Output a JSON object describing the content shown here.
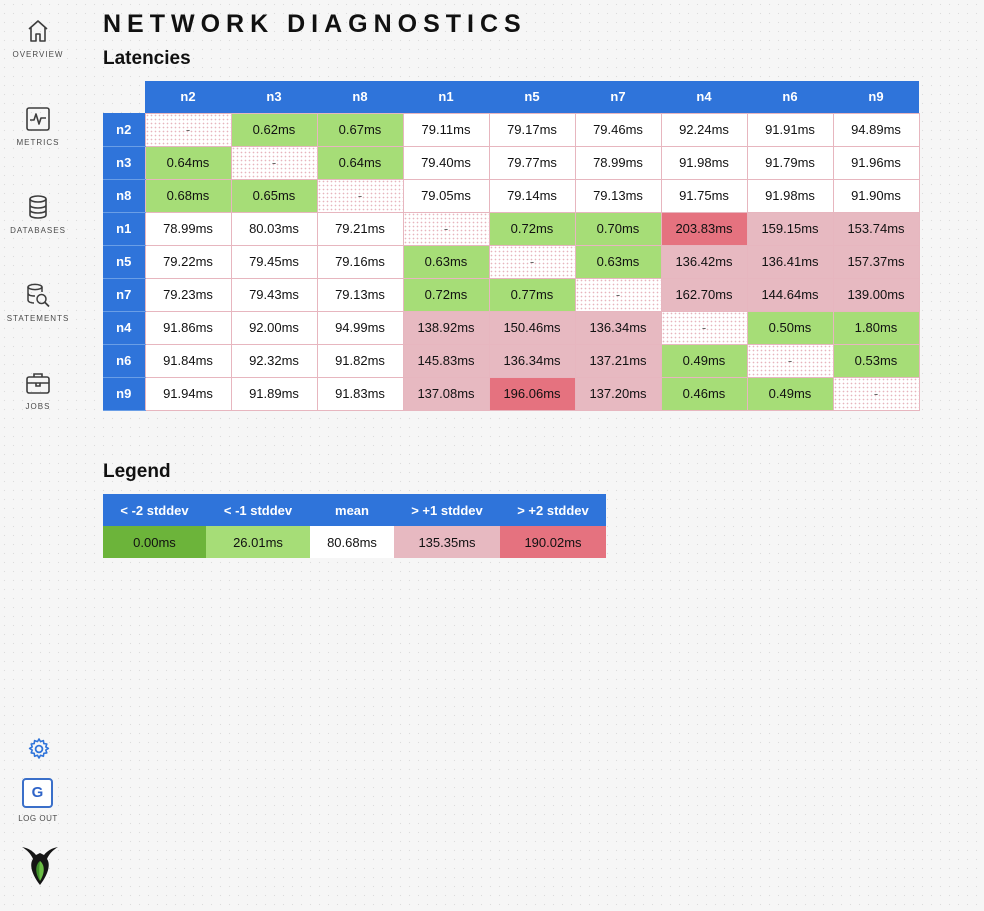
{
  "page": {
    "title": "NETWORK DIAGNOSTICS"
  },
  "sidebar": {
    "items": [
      {
        "label": "OVERVIEW",
        "icon": "home-icon"
      },
      {
        "label": "METRICS",
        "icon": "metrics-icon"
      },
      {
        "label": "DATABASES",
        "icon": "database-icon"
      },
      {
        "label": "STATEMENTS",
        "icon": "statements-icon"
      },
      {
        "label": "JOBS",
        "icon": "briefcase-icon"
      }
    ],
    "settings_icon": "gear-icon",
    "user_initial": "G",
    "logout_label": "LOG OUT",
    "logo_icon": "cockroach-logo-icon"
  },
  "latencies": {
    "heading": "Latencies",
    "columns": [
      "n2",
      "n3",
      "n8",
      "n1",
      "n5",
      "n7",
      "n4",
      "n6",
      "n9"
    ],
    "rows": [
      {
        "node": "n2",
        "cells": [
          {
            "v": "-",
            "c": "self"
          },
          {
            "v": "0.62ms",
            "c": "green"
          },
          {
            "v": "0.67ms",
            "c": "green"
          },
          {
            "v": "79.11ms",
            "c": "white"
          },
          {
            "v": "79.17ms",
            "c": "white"
          },
          {
            "v": "79.46ms",
            "c": "white"
          },
          {
            "v": "92.24ms",
            "c": "white"
          },
          {
            "v": "91.91ms",
            "c": "white"
          },
          {
            "v": "94.89ms",
            "c": "white"
          }
        ]
      },
      {
        "node": "n3",
        "cells": [
          {
            "v": "0.64ms",
            "c": "green"
          },
          {
            "v": "-",
            "c": "self"
          },
          {
            "v": "0.64ms",
            "c": "green"
          },
          {
            "v": "79.40ms",
            "c": "white"
          },
          {
            "v": "79.77ms",
            "c": "white"
          },
          {
            "v": "78.99ms",
            "c": "white"
          },
          {
            "v": "91.98ms",
            "c": "white"
          },
          {
            "v": "91.79ms",
            "c": "white"
          },
          {
            "v": "91.96ms",
            "c": "white"
          }
        ]
      },
      {
        "node": "n8",
        "cells": [
          {
            "v": "0.68ms",
            "c": "green"
          },
          {
            "v": "0.65ms",
            "c": "green"
          },
          {
            "v": "-",
            "c": "self"
          },
          {
            "v": "79.05ms",
            "c": "white"
          },
          {
            "v": "79.14ms",
            "c": "white"
          },
          {
            "v": "79.13ms",
            "c": "white"
          },
          {
            "v": "91.75ms",
            "c": "white"
          },
          {
            "v": "91.98ms",
            "c": "white"
          },
          {
            "v": "91.90ms",
            "c": "white"
          }
        ]
      },
      {
        "node": "n1",
        "cells": [
          {
            "v": "78.99ms",
            "c": "white"
          },
          {
            "v": "80.03ms",
            "c": "white"
          },
          {
            "v": "79.21ms",
            "c": "white"
          },
          {
            "v": "-",
            "c": "self"
          },
          {
            "v": "0.72ms",
            "c": "green"
          },
          {
            "v": "0.70ms",
            "c": "green"
          },
          {
            "v": "203.83ms",
            "c": "red"
          },
          {
            "v": "159.15ms",
            "c": "pink"
          },
          {
            "v": "153.74ms",
            "c": "pink"
          }
        ]
      },
      {
        "node": "n5",
        "cells": [
          {
            "v": "79.22ms",
            "c": "white"
          },
          {
            "v": "79.45ms",
            "c": "white"
          },
          {
            "v": "79.16ms",
            "c": "white"
          },
          {
            "v": "0.63ms",
            "c": "green"
          },
          {
            "v": "-",
            "c": "self"
          },
          {
            "v": "0.63ms",
            "c": "green"
          },
          {
            "v": "136.42ms",
            "c": "pink"
          },
          {
            "v": "136.41ms",
            "c": "pink"
          },
          {
            "v": "157.37ms",
            "c": "pink"
          }
        ]
      },
      {
        "node": "n7",
        "cells": [
          {
            "v": "79.23ms",
            "c": "white"
          },
          {
            "v": "79.43ms",
            "c": "white"
          },
          {
            "v": "79.13ms",
            "c": "white"
          },
          {
            "v": "0.72ms",
            "c": "green"
          },
          {
            "v": "0.77ms",
            "c": "green"
          },
          {
            "v": "-",
            "c": "self"
          },
          {
            "v": "162.70ms",
            "c": "pink"
          },
          {
            "v": "144.64ms",
            "c": "pink"
          },
          {
            "v": "139.00ms",
            "c": "pink"
          }
        ]
      },
      {
        "node": "n4",
        "cells": [
          {
            "v": "91.86ms",
            "c": "white"
          },
          {
            "v": "92.00ms",
            "c": "white"
          },
          {
            "v": "94.99ms",
            "c": "white"
          },
          {
            "v": "138.92ms",
            "c": "pink"
          },
          {
            "v": "150.46ms",
            "c": "pink"
          },
          {
            "v": "136.34ms",
            "c": "pink"
          },
          {
            "v": "-",
            "c": "self"
          },
          {
            "v": "0.50ms",
            "c": "green"
          },
          {
            "v": "1.80ms",
            "c": "green"
          }
        ]
      },
      {
        "node": "n6",
        "cells": [
          {
            "v": "91.84ms",
            "c": "white"
          },
          {
            "v": "92.32ms",
            "c": "white"
          },
          {
            "v": "91.82ms",
            "c": "white"
          },
          {
            "v": "145.83ms",
            "c": "pink"
          },
          {
            "v": "136.34ms",
            "c": "pink"
          },
          {
            "v": "137.21ms",
            "c": "pink"
          },
          {
            "v": "0.49ms",
            "c": "green"
          },
          {
            "v": "-",
            "c": "self"
          },
          {
            "v": "0.53ms",
            "c": "green"
          }
        ]
      },
      {
        "node": "n9",
        "cells": [
          {
            "v": "91.94ms",
            "c": "white"
          },
          {
            "v": "91.89ms",
            "c": "white"
          },
          {
            "v": "91.83ms",
            "c": "white"
          },
          {
            "v": "137.08ms",
            "c": "pink"
          },
          {
            "v": "196.06ms",
            "c": "red"
          },
          {
            "v": "137.20ms",
            "c": "pink"
          },
          {
            "v": "0.46ms",
            "c": "green"
          },
          {
            "v": "0.49ms",
            "c": "green"
          },
          {
            "v": "-",
            "c": "self"
          }
        ]
      }
    ]
  },
  "legend": {
    "heading": "Legend",
    "headers": [
      "< -2 stddev",
      "< -1 stddev",
      "mean",
      "> +1 stddev",
      "> +2 stddev"
    ],
    "values": [
      "0.00ms",
      "26.01ms",
      "80.68ms",
      "135.35ms",
      "190.02ms"
    ]
  },
  "colors": {
    "header_blue": "#2f74da",
    "low_green": "#6cb43a",
    "green": "#a6dd77",
    "pink": "#e7b9c1",
    "red": "#e5727f"
  }
}
